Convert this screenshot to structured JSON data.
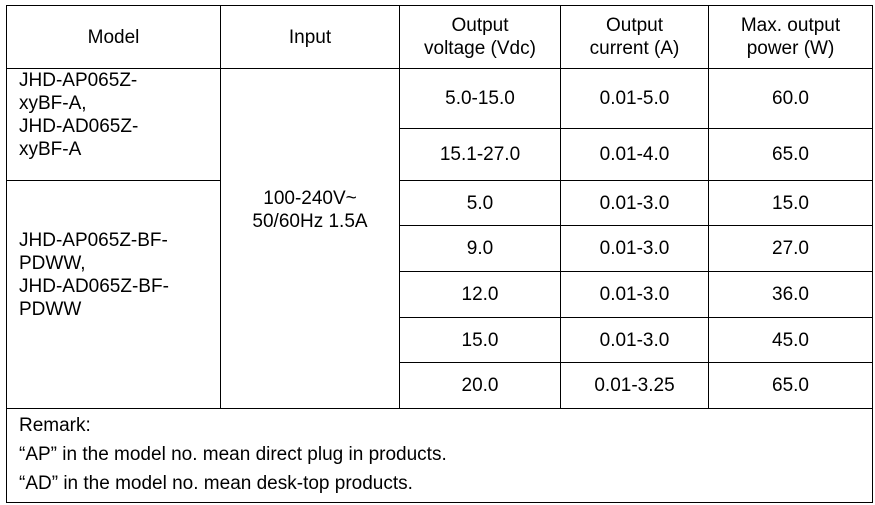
{
  "headers": {
    "model": "Model",
    "input": "Input",
    "output_voltage": [
      "Output",
      "voltage (Vdc)"
    ],
    "output_current": [
      "Output",
      "current (A)"
    ],
    "max_power": [
      "Max. output",
      "power (W)"
    ]
  },
  "groups": [
    {
      "model_lines": [
        "JHD-AP065Z-",
        "xyBF-A,",
        "JHD-AD065Z-",
        "xyBF-A"
      ],
      "rows": [
        {
          "voltage": "5.0-15.0",
          "current": "0.01-5.0",
          "power": "60.0"
        },
        {
          "voltage": "15.1-27.0",
          "current": "0.01-4.0",
          "power": "65.0"
        }
      ]
    },
    {
      "model_lines": [
        "JHD-AP065Z-BF-",
        "PDWW,",
        "JHD-AD065Z-BF-",
        "PDWW"
      ],
      "rows": [
        {
          "voltage": "5.0",
          "current": "0.01-3.0",
          "power": "15.0"
        },
        {
          "voltage": "9.0",
          "current": "0.01-3.0",
          "power": "27.0"
        },
        {
          "voltage": "12.0",
          "current": "0.01-3.0",
          "power": "36.0"
        },
        {
          "voltage": "15.0",
          "current": "0.01-3.0",
          "power": "45.0"
        },
        {
          "voltage": "20.0",
          "current": "0.01-3.25",
          "power": "65.0"
        }
      ]
    }
  ],
  "input_lines": [
    "100-240V~",
    "50/60Hz 1.5A"
  ],
  "remark": [
    "Remark:",
    "“AP” in the model no. mean direct plug in products.",
    "“AD” in the model no. mean desk-top products."
  ]
}
